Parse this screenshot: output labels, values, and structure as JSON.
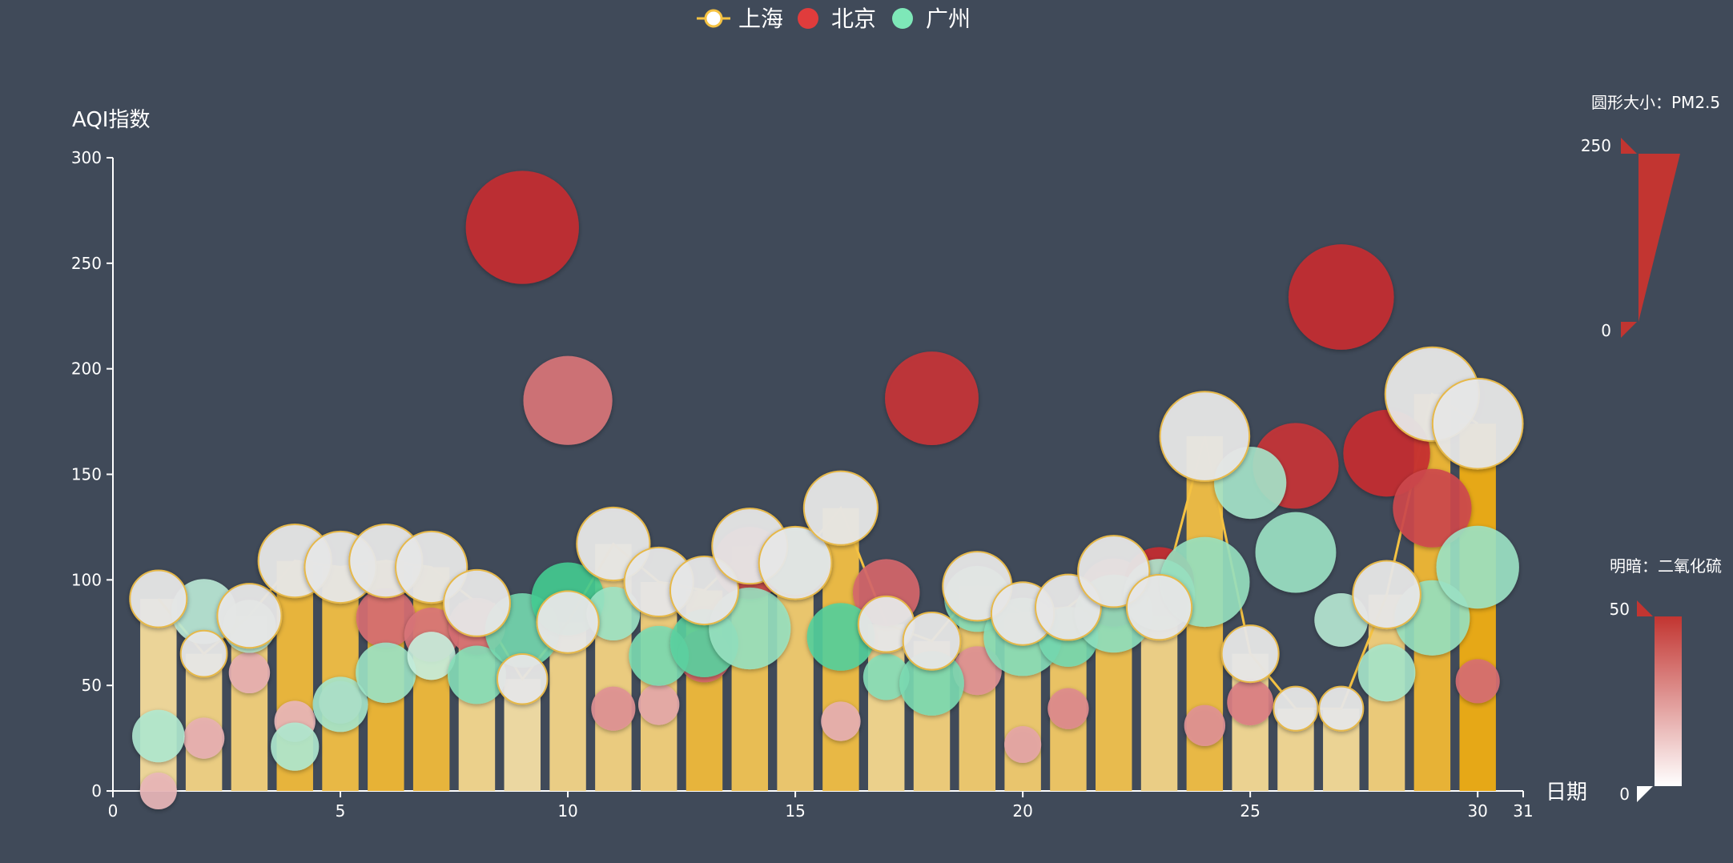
{
  "colors": {
    "background": "#404a59",
    "shanghai_line": "#f5c242",
    "beijing": "#e03c3c",
    "guangzhou": "#7ee8b8",
    "bar_base": "#e6a817",
    "axis": "#ffffff"
  },
  "chart_data": {
    "type": "bar",
    "legend": {
      "position": "top-center",
      "items": [
        {
          "name": "上海",
          "icon": "line-circle-icon",
          "color": "#f5c242"
        },
        {
          "name": "北京",
          "icon": "circle-icon",
          "color": "#e03c3c"
        },
        {
          "name": "广州",
          "icon": "circle-icon",
          "color": "#7ee8b8"
        }
      ]
    },
    "xlabel": "日期",
    "ylabel": "AQI指数",
    "xlim": [
      0,
      31
    ],
    "ylim": [
      0,
      300
    ],
    "xticks": [
      0,
      5,
      10,
      15,
      20,
      25,
      30,
      31
    ],
    "yticks": [
      0,
      50,
      100,
      150,
      200,
      250,
      300
    ],
    "grid": false,
    "series": [
      {
        "name": "上海",
        "style": "bar+line+bubble",
        "points": [
          {
            "x": 1,
            "aqi": 91,
            "pm25": 45,
            "so2": 8
          },
          {
            "x": 2,
            "aqi": 65,
            "pm25": 27,
            "so2": 15
          },
          {
            "x": 3,
            "aqi": 83,
            "pm25": 60,
            "so2": 18
          },
          {
            "x": 4,
            "aqi": 109,
            "pm25": 81,
            "so2": 38
          },
          {
            "x": 5,
            "aqi": 106,
            "pm25": 77,
            "so2": 35
          },
          {
            "x": 6,
            "aqi": 109,
            "pm25": 81,
            "so2": 40
          },
          {
            "x": 7,
            "aqi": 106,
            "pm25": 77,
            "so2": 38
          },
          {
            "x": 8,
            "aqi": 89,
            "pm25": 65,
            "so2": 12
          },
          {
            "x": 9,
            "aqi": 53,
            "pm25": 33,
            "so2": 5
          },
          {
            "x": 10,
            "aqi": 80,
            "pm25": 55,
            "so2": 14
          },
          {
            "x": 11,
            "aqi": 117,
            "pm25": 81,
            "so2": 16
          },
          {
            "x": 12,
            "aqi": 99,
            "pm25": 71,
            "so2": 18
          },
          {
            "x": 13,
            "aqi": 95,
            "pm25": 69,
            "so2": 38
          },
          {
            "x": 14,
            "aqi": 116,
            "pm25": 87,
            "so2": 30
          },
          {
            "x": 15,
            "aqi": 108,
            "pm25": 80,
            "so2": 22
          },
          {
            "x": 16,
            "aqi": 134,
            "pm25": 83,
            "so2": 35
          },
          {
            "x": 17,
            "aqi": 79,
            "pm25": 43,
            "so2": 12
          },
          {
            "x": 18,
            "aqi": 71,
            "pm25": 46,
            "so2": 18
          },
          {
            "x": 19,
            "aqi": 97,
            "pm25": 71,
            "so2": 22
          },
          {
            "x": 20,
            "aqi": 84,
            "pm25": 57,
            "so2": 22
          },
          {
            "x": 21,
            "aqi": 87,
            "pm25": 63,
            "so2": 25
          },
          {
            "x": 22,
            "aqi": 104,
            "pm25": 77,
            "so2": 32
          },
          {
            "x": 23,
            "aqi": 87,
            "pm25": 62,
            "so2": 14
          },
          {
            "x": 24,
            "aqi": 168,
            "pm25": 128,
            "so2": 35
          },
          {
            "x": 25,
            "aqi": 65,
            "pm25": 45,
            "so2": 10
          },
          {
            "x": 26,
            "aqi": 39,
            "pm25": 24,
            "so2": 10
          },
          {
            "x": 27,
            "aqi": 39,
            "pm25": 24,
            "so2": 9
          },
          {
            "x": 28,
            "aqi": 93,
            "pm25": 68,
            "so2": 18
          },
          {
            "x": 29,
            "aqi": 188,
            "pm25": 143,
            "so2": 40
          },
          {
            "x": 30,
            "aqi": 174,
            "pm25": 131,
            "so2": 50
          }
        ]
      },
      {
        "name": "北京",
        "style": "bubble",
        "points": [
          {
            "x": 1,
            "aqi": 0,
            "pm25": 15,
            "so2": 10
          },
          {
            "x": 2,
            "aqi": 25,
            "pm25": 20,
            "so2": 12
          },
          {
            "x": 3,
            "aqi": 56,
            "pm25": 20,
            "so2": 12
          },
          {
            "x": 4,
            "aqi": 33,
            "pm25": 20,
            "so2": 10
          },
          {
            "x": 5,
            "aqi": 42,
            "pm25": 22,
            "so2": 12
          },
          {
            "x": 6,
            "aqi": 82,
            "pm25": 50,
            "so2": 30
          },
          {
            "x": 7,
            "aqi": 74,
            "pm25": 40,
            "so2": 28
          },
          {
            "x": 8,
            "aqi": 78,
            "pm25": 45,
            "so2": 30
          },
          {
            "x": 9,
            "aqi": 267,
            "pm25": 216,
            "so2": 48
          },
          {
            "x": 10,
            "aqi": 185,
            "pm25": 127,
            "so2": 28
          },
          {
            "x": 11,
            "aqi": 39,
            "pm25": 24,
            "so2": 20
          },
          {
            "x": 12,
            "aqi": 41,
            "pm25": 20,
            "so2": 14
          },
          {
            "x": 13,
            "aqi": 64,
            "pm25": 38,
            "so2": 32
          },
          {
            "x": 14,
            "aqi": 108,
            "pm25": 79,
            "so2": 40
          },
          {
            "x": 15,
            "aqi": 108,
            "pm25": 63,
            "so2": 34
          },
          {
            "x": 16,
            "aqi": 33,
            "pm25": 18,
            "so2": 12
          },
          {
            "x": 17,
            "aqi": 94,
            "pm25": 66,
            "so2": 32
          },
          {
            "x": 18,
            "aqi": 186,
            "pm25": 142,
            "so2": 46
          },
          {
            "x": 19,
            "aqi": 57,
            "pm25": 31,
            "so2": 20
          },
          {
            "x": 20,
            "aqi": 22,
            "pm25": 15,
            "so2": 15
          },
          {
            "x": 21,
            "aqi": 39,
            "pm25": 20,
            "so2": 22
          },
          {
            "x": 22,
            "aqi": 94,
            "pm25": 69,
            "so2": 36
          },
          {
            "x": 23,
            "aqi": 99,
            "pm25": 73,
            "so2": 48
          },
          {
            "x": 24,
            "aqi": 31,
            "pm25": 20,
            "so2": 20
          },
          {
            "x": 25,
            "aqi": 42,
            "pm25": 27,
            "so2": 25
          },
          {
            "x": 26,
            "aqi": 154,
            "pm25": 117,
            "so2": 46
          },
          {
            "x": 27,
            "aqi": 234,
            "pm25": 185,
            "so2": 48
          },
          {
            "x": 28,
            "aqi": 160,
            "pm25": 120,
            "so2": 48
          },
          {
            "x": 29,
            "aqi": 134,
            "pm25": 96,
            "so2": 40
          },
          {
            "x": 30,
            "aqi": 52,
            "pm25": 24,
            "so2": 30
          }
        ]
      },
      {
        "name": "广州",
        "style": "bubble",
        "points": [
          {
            "x": 1,
            "aqi": 26,
            "pm25": 37,
            "so2": 12
          },
          {
            "x": 2,
            "aqi": 85,
            "pm25": 62,
            "so2": 8
          },
          {
            "x": 3,
            "aqi": 78,
            "pm25": 38,
            "so2": 10
          },
          {
            "x": 4,
            "aqi": 21,
            "pm25": 30,
            "so2": 12
          },
          {
            "x": 5,
            "aqi": 41,
            "pm25": 42,
            "so2": 15
          },
          {
            "x": 6,
            "aqi": 56,
            "pm25": 52,
            "so2": 18
          },
          {
            "x": 7,
            "aqi": 64,
            "pm25": 30,
            "so2": 5
          },
          {
            "x": 8,
            "aqi": 55,
            "pm25": 48,
            "so2": 25
          },
          {
            "x": 9,
            "aqi": 76,
            "pm25": 85,
            "so2": 30
          },
          {
            "x": 10,
            "aqi": 91,
            "pm25": 81,
            "so2": 45
          },
          {
            "x": 11,
            "aqi": 84,
            "pm25": 39,
            "so2": 18
          },
          {
            "x": 12,
            "aqi": 64,
            "pm25": 51,
            "so2": 28
          },
          {
            "x": 13,
            "aqi": 70,
            "pm25": 69,
            "so2": 38
          },
          {
            "x": 14,
            "aqi": 77,
            "pm25": 105,
            "so2": 20
          },
          {
            "x": 15,
            "aqi": 109,
            "pm25": 68,
            "so2": 35
          },
          {
            "x": 16,
            "aqi": 73,
            "pm25": 68,
            "so2": 40
          },
          {
            "x": 17,
            "aqi": 54,
            "pm25": 27,
            "so2": 25
          },
          {
            "x": 18,
            "aqi": 51,
            "pm25": 61,
            "so2": 28
          },
          {
            "x": 19,
            "aqi": 91,
            "pm25": 64,
            "so2": 25
          },
          {
            "x": 20,
            "aqi": 73,
            "pm25": 95,
            "so2": 25
          },
          {
            "x": 21,
            "aqi": 73,
            "pm25": 51,
            "so2": 30
          },
          {
            "x": 22,
            "aqi": 84,
            "pm25": 94,
            "so2": 22
          },
          {
            "x": 23,
            "aqi": 93,
            "pm25": 77,
            "so2": 12
          },
          {
            "x": 24,
            "aqi": 99,
            "pm25": 130,
            "so2": 20
          },
          {
            "x": 25,
            "aqi": 146,
            "pm25": 79,
            "so2": 15
          },
          {
            "x": 26,
            "aqi": 113,
            "pm25": 102,
            "so2": 18
          },
          {
            "x": 27,
            "aqi": 81,
            "pm25": 39,
            "so2": 10
          },
          {
            "x": 28,
            "aqi": 56,
            "pm25": 46,
            "so2": 15
          },
          {
            "x": 29,
            "aqi": 82,
            "pm25": 87,
            "so2": 20
          },
          {
            "x": 30,
            "aqi": 106,
            "pm25": 108,
            "so2": 18
          }
        ]
      }
    ],
    "visual_map_size": {
      "title": "圆形大小：PM2.5",
      "min": 0,
      "max": 250,
      "min_label": "0",
      "max_label": "250",
      "color": "#c23531"
    },
    "visual_map_brightness": {
      "title": "明暗：二氧化硫",
      "min": 0,
      "max": 50,
      "min_label": "0",
      "max_label": "50",
      "color": "#c23531"
    }
  }
}
